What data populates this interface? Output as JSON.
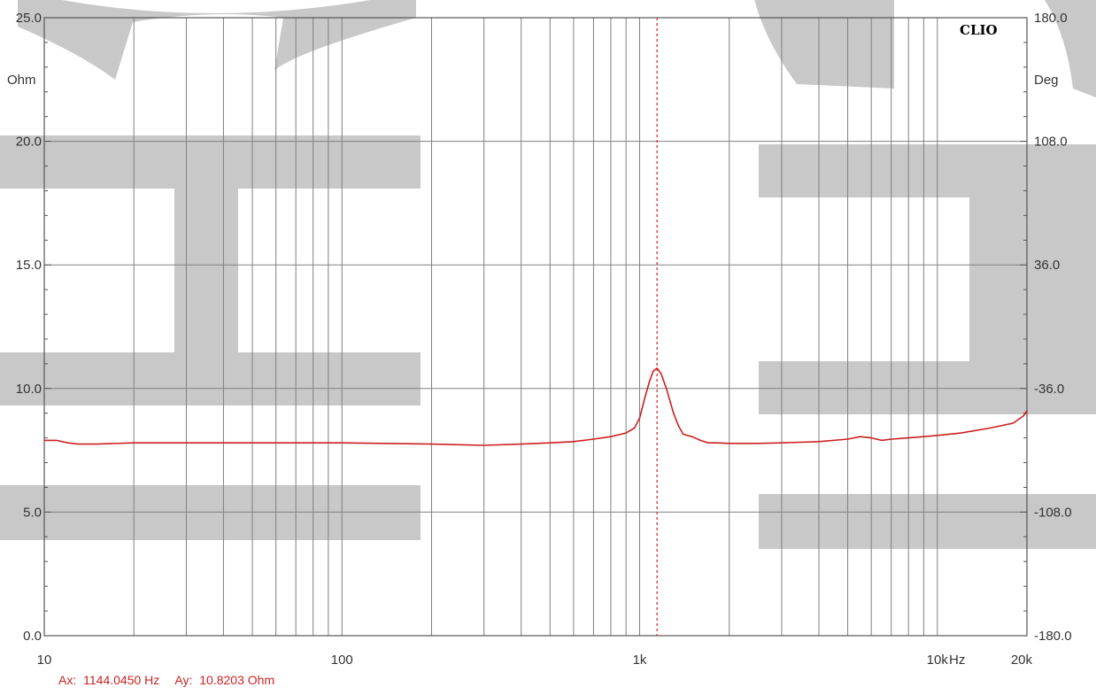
{
  "brand": "CLIO",
  "readout": {
    "ax_label": "Ax:",
    "ax_value": "1144.0450 Hz",
    "ay_label": "Ay:",
    "ay_value": "10.8203 Ohm"
  },
  "colors": {
    "background": "#ffffff",
    "grid": "#808080",
    "trace": "#cc1f1f",
    "cursor": "#d83030",
    "watermark": "#c8c8c8",
    "readout": "#cc2222"
  },
  "chart_data": {
    "type": "line",
    "x_scale": "log",
    "xlim": [
      10,
      20000
    ],
    "ylim": [
      0,
      25
    ],
    "y2lim": [
      -180,
      180
    ],
    "ylabel": "Ohm",
    "y2label": "Deg",
    "xunit": "Hz",
    "grid": true,
    "x_ticks": [
      {
        "value": 10,
        "label": "10"
      },
      {
        "value": 100,
        "label": "100"
      },
      {
        "value": 1000,
        "label": "1k"
      },
      {
        "value": 10000,
        "label": "10k"
      },
      {
        "value": 20000,
        "label": "20k"
      }
    ],
    "y_ticks": [
      {
        "value": 0,
        "label": "0.0"
      },
      {
        "value": 5,
        "label": "5.0"
      },
      {
        "value": 10,
        "label": "10.0"
      },
      {
        "value": 15,
        "label": "15.0"
      },
      {
        "value": 20,
        "label": "20.0"
      },
      {
        "value": 25,
        "label": "25.0"
      }
    ],
    "y2_ticks": [
      {
        "value": -180,
        "label": "-180.0"
      },
      {
        "value": -108,
        "label": "-108.0"
      },
      {
        "value": -36,
        "label": "-36.0"
      },
      {
        "value": 36,
        "label": "36.0"
      },
      {
        "value": 108,
        "label": "108.0"
      },
      {
        "value": 180,
        "label": "180.0"
      }
    ],
    "cursor_x": 1144.045,
    "series": [
      {
        "x": [
          10,
          11,
          12,
          13,
          15,
          20,
          30,
          50,
          70,
          100,
          200,
          300,
          400,
          500,
          600,
          700,
          800,
          900,
          960,
          1000,
          1040,
          1080,
          1110,
          1144,
          1180,
          1230,
          1300,
          1350,
          1400,
          1500,
          1600,
          1700,
          1800,
          2000,
          2500,
          3000,
          4000,
          5000,
          5500,
          6000,
          6500,
          7000,
          8000,
          9000,
          10000,
          12000,
          15000,
          18000,
          19500,
          20000
        ],
        "y": [
          7.9,
          7.9,
          7.8,
          7.75,
          7.75,
          7.8,
          7.8,
          7.8,
          7.8,
          7.8,
          7.75,
          7.7,
          7.75,
          7.8,
          7.85,
          7.95,
          8.05,
          8.2,
          8.4,
          8.8,
          9.6,
          10.3,
          10.7,
          10.82,
          10.6,
          10.0,
          9.0,
          8.5,
          8.15,
          8.05,
          7.9,
          7.8,
          7.8,
          7.78,
          7.78,
          7.8,
          7.85,
          7.95,
          8.05,
          8.0,
          7.9,
          7.95,
          8.0,
          8.05,
          8.1,
          8.2,
          8.4,
          8.6,
          8.9,
          9.1
        ]
      }
    ]
  }
}
